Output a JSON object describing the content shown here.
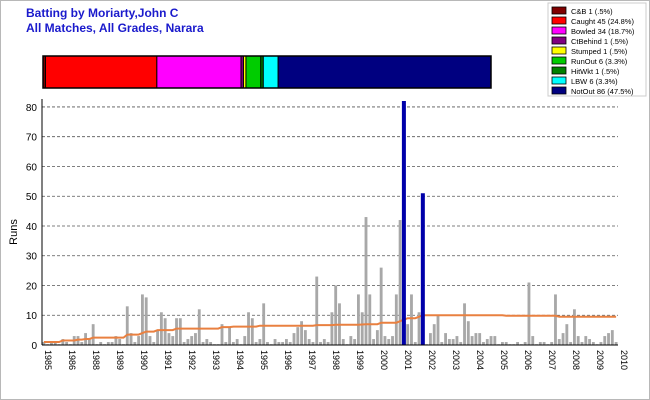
{
  "header": {
    "title_line1": "Batting by Moriarty,John C",
    "title_line2": "All Matches, All Grades, Narara"
  },
  "colors": {
    "title": "#1a1acc",
    "bar": "#a8a8a8",
    "highlight_bar": "#0000aa",
    "average_line": "#e98040",
    "grid": "#555555"
  },
  "chart_data": [
    {
      "type": "bar",
      "description": "Dismissal breakdown stacked bar",
      "segments": [
        {
          "name": "C&B 1 (.5%)",
          "count": 1,
          "color": "#800000"
        },
        {
          "name": "Caught 45 (24.8%)",
          "count": 45,
          "color": "#ff0000"
        },
        {
          "name": "Bowled 34 (18.7%)",
          "count": 34,
          "color": "#ff00ff"
        },
        {
          "name": "CtBehind 1 (.5%)",
          "count": 1,
          "color": "#800080"
        },
        {
          "name": "Stumped 1 (.5%)",
          "count": 1,
          "color": "#ffff00"
        },
        {
          "name": "RunOut 6 (3.3%)",
          "count": 6,
          "color": "#00cc00"
        },
        {
          "name": "HitWkt 1 (.5%)",
          "count": 1,
          "color": "#008000"
        },
        {
          "name": "LBW 6 (3.3%)",
          "count": 6,
          "color": "#00ffff"
        },
        {
          "name": "NotOut 86 (47.5%)",
          "count": 86,
          "color": "#000080"
        }
      ],
      "legend_position": "top-right"
    },
    {
      "type": "bar",
      "ylabel": "Runs",
      "ylim": [
        0,
        82
      ],
      "yticks": [
        0,
        10,
        20,
        30,
        40,
        50,
        60,
        70,
        80
      ],
      "grid": true,
      "x_labels": [
        "1985",
        "1986",
        "1988",
        "1989",
        "1990",
        "1991",
        "1992",
        "1993",
        "1994",
        "1995",
        "1996",
        "1997",
        "1998",
        "1999",
        "2000",
        "2001",
        "2002",
        "2003",
        "2004",
        "2005",
        "2006",
        "2007",
        "2008",
        "2009",
        "2010"
      ],
      "innings_runs": [
        1,
        0,
        1,
        1,
        0,
        2,
        1,
        0,
        3,
        3,
        1,
        4,
        2,
        7,
        0,
        1,
        0,
        1,
        1,
        3,
        2,
        0,
        13,
        4,
        1,
        3,
        17,
        16,
        3,
        1,
        5,
        11,
        9,
        4,
        3,
        9,
        9,
        1,
        2,
        3,
        4,
        12,
        1,
        2,
        1,
        0,
        0,
        7,
        1,
        6,
        1,
        2,
        0,
        3,
        11,
        9,
        1,
        2,
        14,
        1,
        0,
        2,
        1,
        1,
        2,
        1,
        4,
        6,
        8,
        5,
        2,
        1,
        23,
        1,
        2,
        1,
        11,
        20,
        14,
        2,
        0,
        3,
        2,
        17,
        11,
        43,
        17,
        2,
        5,
        26,
        3,
        2,
        3,
        17,
        42,
        82,
        7,
        17,
        1,
        11,
        51,
        0,
        4,
        7,
        10,
        1,
        4,
        2,
        2,
        3,
        1,
        14,
        8,
        3,
        4,
        4,
        1,
        2,
        3,
        3,
        0,
        1,
        1,
        0,
        0,
        1,
        0,
        1,
        21,
        3,
        0,
        1,
        1,
        0,
        1,
        17,
        2,
        4,
        7,
        1,
        12,
        3,
        1,
        3,
        2,
        1,
        0,
        1,
        3,
        4,
        5,
        1
      ],
      "highlight_innings": [
        95,
        100
      ],
      "average_line": [
        1,
        1,
        1,
        1,
        1,
        1.5,
        1.5,
        1.5,
        1.5,
        1.8,
        1.8,
        2,
        2,
        2.5,
        2.5,
        2.5,
        2.5,
        2.5,
        2.5,
        2.5,
        2.5,
        2.5,
        3.5,
        3.5,
        3.5,
        3.5,
        4,
        4.5,
        4.5,
        4.5,
        5,
        5,
        5,
        5,
        5,
        5.5,
        5.5,
        5.5,
        5.5,
        5.5,
        5.5,
        5.5,
        5.5,
        5.5,
        5.5,
        5.5,
        5.5,
        6,
        6,
        6,
        6.2,
        6.2,
        6.2,
        6.2,
        6.2,
        6.2,
        6.2,
        6.5,
        6.5,
        6.5,
        6.5,
        6.5,
        6.5,
        6.5,
        6.5,
        6.5,
        6.5,
        6.5,
        6.5,
        6.5,
        6.5,
        6.5,
        6.7,
        6.7,
        6.7,
        6.7,
        6.7,
        6.8,
        6.8,
        6.8,
        6.8,
        6.8,
        6.8,
        6.8,
        6.9,
        7,
        7,
        7,
        7,
        7.5,
        7.5,
        7.5,
        7.5,
        7.5,
        8,
        8.5,
        9,
        9,
        9,
        9.5,
        10,
        10,
        10,
        10,
        10,
        10,
        10,
        10,
        10,
        10,
        10,
        10,
        10,
        10,
        10,
        10,
        10,
        10,
        10,
        10,
        10,
        10,
        9.8,
        9.8,
        9.8,
        9.8,
        9.8,
        9.8,
        9.8,
        9.8,
        9.8,
        9.8,
        9.8,
        9.8,
        9.8,
        9.8,
        9.5,
        9.5,
        9.5,
        9.5,
        9.5,
        9.5,
        9.5,
        9.5,
        9.5,
        9.5,
        9.5,
        9.5,
        9.5,
        9.5,
        9.5,
        9.5
      ]
    }
  ]
}
